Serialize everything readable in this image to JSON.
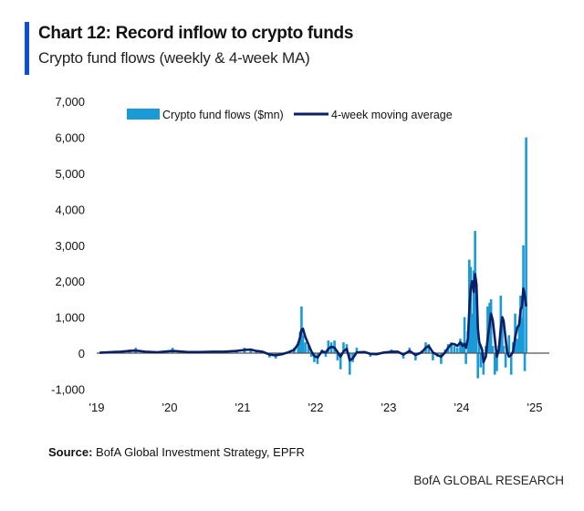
{
  "header": {
    "title": "Chart 12: Record inflow to crypto funds",
    "subtitle": "Crypto fund flows (weekly & 4-week MA)"
  },
  "footer": {
    "source_label": "Source:",
    "source_text": " BofA Global Investment Strategy, EPFR",
    "brand": "BofA GLOBAL RESEARCH"
  },
  "colors": {
    "bars": "#1a9bd7",
    "line": "#0b1f66",
    "accent": "#0a4fd6"
  },
  "chart_data": {
    "type": "bar+line",
    "title": "Crypto fund flows (weekly & 4-week MA)",
    "ylim": [
      -1000,
      7000
    ],
    "yticks": [
      -1000,
      0,
      1000,
      2000,
      3000,
      4000,
      5000,
      6000,
      7000
    ],
    "ytick_labels": [
      "-1,000",
      "0",
      "1,000",
      "2,000",
      "3,000",
      "4,000",
      "5,000",
      "6,000",
      "7,000"
    ],
    "xlim": [
      "2019-01-01",
      "2025-03-01"
    ],
    "xtick_labels": [
      "'19",
      "'20",
      "'21",
      "'22",
      "'23",
      "'24",
      "'25"
    ],
    "legend_position": "top",
    "grid": false,
    "series": [
      {
        "name": "Crypto fund flows ($mn)",
        "type": "bar"
      },
      {
        "name": "4-week moving average",
        "type": "line"
      }
    ],
    "points": [
      [
        "2019-01-15",
        20,
        10
      ],
      [
        "2019-03-01",
        40,
        25
      ],
      [
        "2019-05-01",
        60,
        40
      ],
      [
        "2019-06-15",
        100,
        60
      ],
      [
        "2019-07-15",
        150,
        70
      ],
      [
        "2019-09-01",
        40,
        40
      ],
      [
        "2019-11-01",
        30,
        25
      ],
      [
        "2020-01-15",
        150,
        60
      ],
      [
        "2020-02-15",
        60,
        50
      ],
      [
        "2020-04-01",
        30,
        30
      ],
      [
        "2020-06-01",
        40,
        30
      ],
      [
        "2020-08-01",
        60,
        40
      ],
      [
        "2020-10-01",
        50,
        40
      ],
      [
        "2020-12-01",
        80,
        60
      ],
      [
        "2021-01-10",
        150,
        90
      ],
      [
        "2021-02-10",
        120,
        100
      ],
      [
        "2021-03-10",
        80,
        60
      ],
      [
        "2021-04-10",
        50,
        40
      ],
      [
        "2021-05-15",
        -120,
        -40
      ],
      [
        "2021-06-15",
        -150,
        -60
      ],
      [
        "2021-07-15",
        -60,
        -30
      ],
      [
        "2021-08-15",
        40,
        20
      ],
      [
        "2021-09-15",
        150,
        90
      ],
      [
        "2021-10-05",
        300,
        250
      ],
      [
        "2021-10-15",
        600,
        450
      ],
      [
        "2021-10-22",
        1300,
        650
      ],
      [
        "2021-10-29",
        500,
        680
      ],
      [
        "2021-11-10",
        300,
        450
      ],
      [
        "2021-11-25",
        200,
        250
      ],
      [
        "2021-12-10",
        -100,
        50
      ],
      [
        "2021-12-25",
        -250,
        -80
      ],
      [
        "2022-01-10",
        -300,
        -120
      ],
      [
        "2022-02-01",
        100,
        50
      ],
      [
        "2022-02-20",
        -100,
        20
      ],
      [
        "2022-03-05",
        350,
        120
      ],
      [
        "2022-03-20",
        300,
        180
      ],
      [
        "2022-04-05",
        350,
        150
      ],
      [
        "2022-04-20",
        -200,
        30
      ],
      [
        "2022-05-05",
        -450,
        -100
      ],
      [
        "2022-05-20",
        300,
        50
      ],
      [
        "2022-06-05",
        250,
        120
      ],
      [
        "2022-06-20",
        -600,
        -200
      ],
      [
        "2022-07-05",
        -250,
        -150
      ],
      [
        "2022-07-25",
        150,
        20
      ],
      [
        "2022-09-01",
        60,
        30
      ],
      [
        "2022-10-01",
        -100,
        -20
      ],
      [
        "2022-11-01",
        -50,
        -30
      ],
      [
        "2022-12-01",
        30,
        10
      ],
      [
        "2023-01-15",
        100,
        40
      ],
      [
        "2023-02-15",
        50,
        40
      ],
      [
        "2023-03-15",
        -150,
        -40
      ],
      [
        "2023-04-15",
        150,
        60
      ],
      [
        "2023-05-15",
        -200,
        -50
      ],
      [
        "2023-06-15",
        80,
        20
      ],
      [
        "2023-07-05",
        300,
        150
      ],
      [
        "2023-07-20",
        250,
        200
      ],
      [
        "2023-08-10",
        -200,
        20
      ],
      [
        "2023-09-01",
        -100,
        -50
      ],
      [
        "2023-09-20",
        -300,
        -100
      ],
      [
        "2023-10-10",
        100,
        20
      ],
      [
        "2023-10-25",
        250,
        150
      ],
      [
        "2023-11-10",
        300,
        250
      ],
      [
        "2023-11-25",
        200,
        250
      ],
      [
        "2023-12-10",
        150,
        200
      ],
      [
        "2023-12-25",
        400,
        300
      ],
      [
        "2024-01-05",
        300,
        200
      ],
      [
        "2024-01-15",
        1000,
        250
      ],
      [
        "2024-01-22",
        -300,
        150
      ],
      [
        "2024-02-01",
        600,
        400
      ],
      [
        "2024-02-08",
        2600,
        1200
      ],
      [
        "2024-02-15",
        2400,
        1800
      ],
      [
        "2024-02-22",
        1100,
        2000
      ],
      [
        "2024-03-01",
        2300,
        1700
      ],
      [
        "2024-03-08",
        3400,
        2200
      ],
      [
        "2024-03-15",
        1000,
        1900
      ],
      [
        "2024-03-22",
        -700,
        700
      ],
      [
        "2024-03-29",
        300,
        300
      ],
      [
        "2024-04-05",
        -400,
        200
      ],
      [
        "2024-04-12",
        -100,
        100
      ],
      [
        "2024-04-19",
        -600,
        -250
      ],
      [
        "2024-05-01",
        200,
        -100
      ],
      [
        "2024-05-10",
        1300,
        400
      ],
      [
        "2024-05-20",
        1400,
        800
      ],
      [
        "2024-05-27",
        1500,
        1100
      ],
      [
        "2024-06-05",
        200,
        900
      ],
      [
        "2024-06-15",
        -600,
        400
      ],
      [
        "2024-06-25",
        -500,
        -100
      ],
      [
        "2024-07-05",
        200,
        100
      ],
      [
        "2024-07-15",
        1600,
        700
      ],
      [
        "2024-07-22",
        800,
        1000
      ],
      [
        "2024-07-29",
        200,
        900
      ],
      [
        "2024-08-08",
        -400,
        400
      ],
      [
        "2024-08-15",
        100,
        50
      ],
      [
        "2024-08-25",
        500,
        -100
      ],
      [
        "2024-09-05",
        -600,
        -50
      ],
      [
        "2024-09-15",
        300,
        50
      ],
      [
        "2024-09-25",
        1100,
        450
      ],
      [
        "2024-10-05",
        400,
        700
      ],
      [
        "2024-10-15",
        800,
        800
      ],
      [
        "2024-10-22",
        1600,
        1200
      ],
      [
        "2024-10-29",
        1000,
        1300
      ],
      [
        "2024-11-05",
        3000,
        1800
      ],
      [
        "2024-11-12",
        -500,
        1600
      ],
      [
        "2024-11-19",
        6000,
        1300
      ]
    ]
  }
}
